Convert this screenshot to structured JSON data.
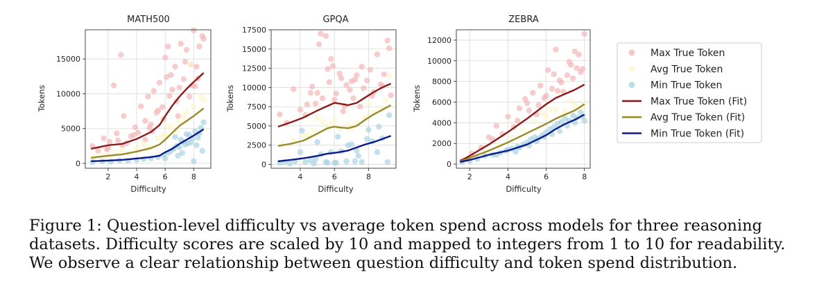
{
  "figure": {
    "caption": "Figure 1: Question-level difficulty vs average token spend across models for three reasoning datasets. Difficulty scores are scaled by 10 and mapped to integers from 1 to 10 for readability. We observe a clear relationship between question difficulty and token spend distribution."
  },
  "legend": {
    "placement": "right",
    "entries": [
      {
        "label": "Max True Token",
        "kind": "scatter",
        "color": "#f4b6b8"
      },
      {
        "label": "Avg True Token",
        "kind": "scatter",
        "color": "#fbf7cf"
      },
      {
        "label": "Min True Token",
        "kind": "scatter",
        "color": "#a9d3e2"
      },
      {
        "label": "Max True Token (Fit)",
        "kind": "line",
        "color": "#8b1a1a"
      },
      {
        "label": "Avg True Token (Fit)",
        "kind": "line",
        "color": "#9a8a2a"
      },
      {
        "label": "Min True Token (Fit)",
        "kind": "line",
        "color": "#0a1a8a"
      }
    ]
  },
  "chart_data": [
    {
      "type": "scatter",
      "title": "MATH500",
      "xlabel": "Difficulty",
      "ylabel": "Tokens",
      "xlim": [
        0.4,
        9.2
      ],
      "ylim": [
        -700,
        19200
      ],
      "xticks": [
        2,
        4,
        6,
        8
      ],
      "yticks": [
        0,
        5000,
        10000,
        15000
      ],
      "grid": true,
      "fit_series": [
        {
          "name": "Max True Token (Fit)",
          "x": [
            0.8,
            2.0,
            3.0,
            4.0,
            5.0,
            5.6,
            6.0,
            6.5,
            7.0,
            7.5,
            8.0,
            8.7
          ],
          "y": [
            2100,
            2600,
            2800,
            3500,
            4500,
            5500,
            6800,
            8300,
            9600,
            10700,
            11700,
            13000
          ]
        },
        {
          "name": "Avg True Token (Fit)",
          "x": [
            0.8,
            2.0,
            3.0,
            4.0,
            5.0,
            5.6,
            6.0,
            6.5,
            7.0,
            7.5,
            8.0,
            8.7
          ],
          "y": [
            800,
            1100,
            1300,
            1700,
            2200,
            2700,
            3400,
            4400,
            5400,
            6100,
            6800,
            7900
          ]
        },
        {
          "name": "Min True Token (Fit)",
          "x": [
            0.8,
            2.0,
            3.0,
            4.0,
            5.0,
            5.6,
            6.0,
            6.5,
            7.0,
            7.5,
            8.0,
            8.7
          ],
          "y": [
            300,
            400,
            500,
            700,
            900,
            1100,
            1600,
            2100,
            2800,
            3400,
            4000,
            4900
          ]
        }
      ],
      "scatter_series": [
        {
          "name": "Max True Token",
          "x": [
            0.9,
            1.3,
            1.7,
            2.0,
            2.4,
            2.6,
            2.9,
            3.1,
            3.3,
            3.6,
            3.9,
            4.1,
            4.3,
            4.6,
            4.8,
            5.0,
            5.2,
            5.4,
            5.6,
            5.8,
            6.0,
            6.1,
            6.3,
            6.5,
            6.7,
            6.9,
            7.1,
            7.3,
            7.5,
            7.7,
            7.9,
            8.0,
            8.2,
            8.4,
            8.6,
            2.1,
            3.0,
            4.6,
            5.5,
            6.2,
            7.0,
            7.8,
            8.3,
            8.7,
            6.8,
            5.9,
            4.9,
            3.8,
            2.7,
            1.9,
            7.4,
            8.1,
            6.4,
            5.1
          ],
          "y": [
            2500,
            1800,
            3600,
            2200,
            11200,
            4300,
            15600,
            6800,
            2900,
            3900,
            5200,
            4400,
            8200,
            6100,
            9600,
            5600,
            10400,
            7300,
            11600,
            8100,
            15200,
            12400,
            9700,
            10600,
            13900,
            6800,
            17200,
            12100,
            16300,
            9600,
            11200,
            19100,
            13900,
            16800,
            18300,
            3100,
            2600,
            3400,
            7600,
            16800,
            10900,
            14200,
            12200,
            17900,
            8900,
            6400,
            5100,
            4100,
            3300,
            2000,
            14600,
            11100,
            12700,
            4600
          ]
        },
        {
          "name": "Avg True Token",
          "x": [
            1.0,
            1.5,
            2.0,
            2.5,
            3.0,
            3.5,
            4.0,
            4.5,
            5.0,
            5.5,
            6.0,
            6.5,
            7.0,
            7.5,
            8.0,
            8.5,
            7.8,
            6.8,
            5.8,
            8.7,
            4.8,
            7.3,
            6.2
          ],
          "y": [
            900,
            1200,
            1000,
            1600,
            1900,
            1400,
            2200,
            2800,
            2500,
            3600,
            4100,
            5200,
            6100,
            7400,
            8200,
            9600,
            14200,
            4600,
            3900,
            9100,
            2100,
            6800,
            5400
          ]
        },
        {
          "name": "Min True Token",
          "x": [
            0.9,
            1.6,
            2.2,
            2.8,
            3.4,
            4.0,
            4.5,
            5.0,
            5.5,
            5.9,
            6.2,
            6.4,
            6.6,
            6.8,
            7.0,
            7.1,
            7.3,
            7.4,
            7.6,
            7.7,
            7.9,
            8.0,
            8.1,
            8.3,
            8.4,
            8.5,
            8.6,
            8.7,
            6.9,
            7.2,
            7.5,
            7.8,
            8.2,
            6.0,
            6.7
          ],
          "y": [
            200,
            300,
            250,
            400,
            350,
            500,
            600,
            700,
            900,
            1200,
            1500,
            1800,
            2100,
            2500,
            2300,
            3400,
            3100,
            2700,
            2900,
            4100,
            3600,
            300,
            4600,
            3700,
            4300,
            5100,
            1800,
            5900,
            1100,
            1500,
            4200,
            3000,
            2600,
            700,
            3800
          ]
        }
      ]
    },
    {
      "type": "scatter",
      "title": "GPQA",
      "xlabel": "Difficulty",
      "ylabel": "Tokens",
      "xlim": [
        2.3,
        9.6
      ],
      "ylim": [
        -500,
        17500
      ],
      "xticks": [
        4,
        6,
        8
      ],
      "yticks": [
        0,
        2500,
        5000,
        7500,
        10000,
        12500,
        15000,
        17500
      ],
      "grid": true,
      "fit_series": [
        {
          "name": "Max True Token (Fit)",
          "x": [
            2.7,
            3.5,
            4.2,
            5.0,
            5.6,
            6.0,
            6.3,
            6.8,
            7.3,
            7.8,
            8.3,
            8.8,
            9.3
          ],
          "y": [
            4900,
            5500,
            6100,
            7000,
            7600,
            8000,
            7900,
            7700,
            8000,
            8700,
            9400,
            10000,
            10500
          ]
        },
        {
          "name": "Avg True Token (Fit)",
          "x": [
            2.7,
            3.5,
            4.2,
            5.0,
            5.6,
            6.0,
            6.3,
            6.8,
            7.3,
            7.8,
            8.3,
            8.8,
            9.3
          ],
          "y": [
            2400,
            2700,
            3100,
            4000,
            4700,
            4900,
            4800,
            4700,
            5000,
            5800,
            6500,
            7100,
            7700
          ]
        },
        {
          "name": "Min True Token (Fit)",
          "x": [
            2.7,
            3.5,
            4.2,
            5.0,
            5.6,
            6.0,
            6.3,
            6.8,
            7.3,
            7.8,
            8.3,
            8.8,
            9.3
          ],
          "y": [
            400,
            600,
            800,
            1100,
            1400,
            1500,
            1600,
            1800,
            2200,
            2600,
            2900,
            3300,
            3700
          ]
        }
      ],
      "scatter_series": [
        {
          "name": "Max True Token",
          "x": [
            2.8,
            3.2,
            3.6,
            4.0,
            4.3,
            4.6,
            4.9,
            5.1,
            5.3,
            5.5,
            5.7,
            5.9,
            6.1,
            6.3,
            6.5,
            6.7,
            6.9,
            7.1,
            7.3,
            7.5,
            7.7,
            7.9,
            8.1,
            8.3,
            8.5,
            8.7,
            8.9,
            9.1,
            9.3,
            5.2,
            5.8,
            6.4,
            7.0,
            7.6,
            8.2,
            8.8,
            4.4,
            5.0,
            6.0,
            6.6,
            7.2,
            9.2,
            4.7,
            5.6
          ],
          "y": [
            6500,
            5400,
            9800,
            7100,
            6400,
            9300,
            7900,
            15600,
            8600,
            16700,
            10700,
            12800,
            9200,
            11800,
            6900,
            10300,
            9700,
            8600,
            11600,
            7500,
            9900,
            10900,
            12300,
            9400,
            14300,
            10400,
            11700,
            16100,
            9000,
            17000,
            13700,
            11200,
            10800,
            12700,
            8900,
            10200,
            7800,
            9300,
            8400,
            7600,
            11000,
            15100,
            10100,
            12400
          ]
        },
        {
          "name": "Avg True Token",
          "x": [
            2.9,
            3.6,
            4.2,
            4.8,
            5.3,
            5.8,
            6.3,
            6.8,
            7.3,
            7.8,
            8.3,
            8.8,
            9.2,
            5.0,
            6.0,
            7.0,
            8.0,
            9.0,
            4.5,
            5.5
          ],
          "y": [
            2600,
            3100,
            3700,
            4400,
            5600,
            5200,
            4700,
            5100,
            5400,
            6100,
            6800,
            7300,
            11600,
            6100,
            5800,
            4600,
            7900,
            8300,
            3900,
            4900
          ]
        },
        {
          "name": "Min True Token",
          "x": [
            2.8,
            3.1,
            3.4,
            3.7,
            4.0,
            4.3,
            4.6,
            4.9,
            5.2,
            5.5,
            5.8,
            6.1,
            6.4,
            6.7,
            7.0,
            7.3,
            7.6,
            7.9,
            8.2,
            8.5,
            8.8,
            9.1,
            4.1,
            5.0,
            5.6,
            6.2,
            6.8,
            7.4,
            8.0,
            8.6,
            9.2,
            4.8,
            6.0,
            7.2
          ],
          "y": [
            200,
            300,
            100,
            400,
            1600,
            300,
            500,
            700,
            1300,
            300,
            1600,
            200,
            1700,
            400,
            2600,
            1800,
            300,
            3300,
            3000,
            1600,
            3400,
            300,
            4400,
            2900,
            200,
            3600,
            2500,
            1100,
            4500,
            4900,
            6400,
            100,
            200,
            400
          ]
        }
      ]
    },
    {
      "type": "scatter",
      "title": "ZEBRA",
      "xlabel": "Difficulty",
      "ylabel": "Tokens",
      "xlim": [
        1.3,
        8.3
      ],
      "ylim": [
        -400,
        13000
      ],
      "xticks": [
        2,
        4,
        6,
        8
      ],
      "yticks": [
        0,
        2000,
        4000,
        6000,
        8000,
        10000,
        12000
      ],
      "grid": true,
      "fit_series": [
        {
          "name": "Max True Token (Fit)",
          "x": [
            1.5,
            2.0,
            3.0,
            4.0,
            5.0,
            6.0,
            6.5,
            7.0,
            7.5,
            8.0
          ],
          "y": [
            300,
            800,
            1900,
            3100,
            4400,
            5800,
            6400,
            6800,
            7200,
            7700
          ]
        },
        {
          "name": "Avg True Token (Fit)",
          "x": [
            1.5,
            2.0,
            3.0,
            4.0,
            5.0,
            6.0,
            6.5,
            7.0,
            7.5,
            8.0
          ],
          "y": [
            250,
            600,
            1300,
            2100,
            3000,
            3900,
            4400,
            4800,
            5200,
            5800
          ]
        },
        {
          "name": "Min True Token (Fit)",
          "x": [
            1.5,
            2.0,
            3.0,
            4.0,
            5.0,
            6.0,
            6.5,
            7.0,
            7.5,
            8.0
          ],
          "y": [
            200,
            400,
            900,
            1300,
            1900,
            2800,
            3400,
            3900,
            4300,
            4800
          ]
        }
      ],
      "scatter_series": [
        {
          "name": "Max True Token",
          "x": [
            1.6,
            2.1,
            2.6,
            3.0,
            3.4,
            3.7,
            4.0,
            4.3,
            4.6,
            4.9,
            5.1,
            5.3,
            5.5,
            5.7,
            5.9,
            6.1,
            6.3,
            6.5,
            6.7,
            6.9,
            7.1,
            7.3,
            7.5,
            7.7,
            7.9,
            8.0,
            5.6,
            6.0,
            6.4,
            6.8,
            7.2,
            7.6,
            4.5,
            5.0,
            3.2,
            7.4,
            7.8,
            6.6
          ],
          "y": [
            300,
            1000,
            1600,
            2600,
            3700,
            2900,
            4600,
            3600,
            5400,
            6300,
            5200,
            6900,
            4800,
            7600,
            6400,
            9100,
            7300,
            11100,
            8100,
            7000,
            8600,
            9600,
            10900,
            10600,
            9200,
            12600,
            5700,
            6600,
            8700,
            7900,
            9900,
            9300,
            4200,
            5900,
            2400,
            8300,
            8900,
            7100
          ]
        },
        {
          "name": "Avg True Token",
          "x": [
            2.0,
            2.8,
            3.5,
            4.2,
            4.8,
            5.4,
            6.0,
            6.5,
            7.0,
            7.5,
            8.0,
            6.2,
            6.8,
            7.3,
            7.8,
            5.8
          ],
          "y": [
            600,
            1200,
            1800,
            2600,
            3300,
            4100,
            4600,
            5300,
            5100,
            5700,
            5900,
            5300,
            4700,
            6100,
            5400,
            4900
          ]
        },
        {
          "name": "Min True Token",
          "x": [
            1.6,
            2.0,
            2.4,
            2.8,
            3.2,
            3.6,
            3.9,
            4.2,
            4.5,
            4.8,
            5.0,
            5.2,
            5.4,
            5.6,
            5.8,
            6.0,
            6.2,
            6.4,
            6.6,
            6.8,
            7.0,
            7.2,
            7.4,
            7.6,
            7.8,
            8.0,
            4.4,
            5.1,
            5.5,
            5.9,
            6.3,
            6.7,
            7.1,
            7.5,
            7.9,
            3.4,
            4.0,
            4.6
          ],
          "y": [
            200,
            300,
            500,
            800,
            900,
            1100,
            1300,
            1500,
            1700,
            1900,
            2100,
            2400,
            2600,
            2500,
            2800,
            3100,
            3400,
            3600,
            3900,
            4100,
            4400,
            4200,
            4700,
            4500,
            5000,
            4200,
            1200,
            1800,
            2200,
            2600,
            2900,
            3200,
            3700,
            4000,
            4600,
            900,
            1400,
            1600
          ]
        }
      ]
    }
  ]
}
